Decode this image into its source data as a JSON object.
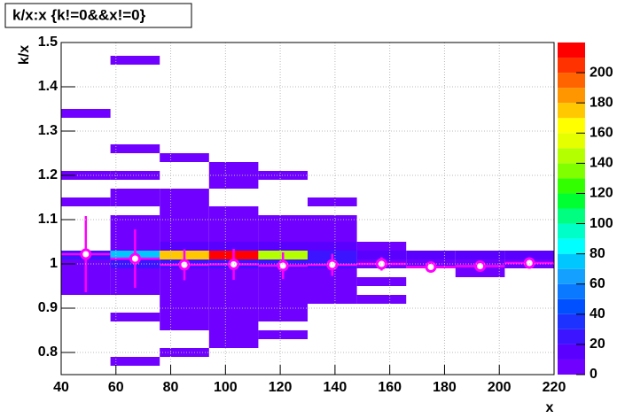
{
  "chart_data": {
    "type": "heatmap2d",
    "title": "k/x:x {k!=0&&x!=0}",
    "x_label": "x",
    "y_label": "k/x",
    "xlim": [
      40,
      220
    ],
    "ylim": [
      0.75,
      1.5
    ],
    "zlim": [
      0,
      220
    ],
    "xticks": [
      40,
      60,
      80,
      100,
      120,
      140,
      160,
      180,
      200,
      220
    ],
    "yticks": [
      0.8,
      0.9,
      1,
      1.1,
      1.2,
      1.3,
      1.4,
      1.5
    ],
    "zticks": [
      0,
      20,
      40,
      60,
      80,
      100,
      120,
      140,
      160,
      180,
      200
    ],
    "grid": true,
    "bin_size": [
      18,
      0.02
    ],
    "palette": [
      "#7000ff",
      "#5a00ff",
      "#3c14ff",
      "#1e32ff",
      "#0050ff",
      "#0a78ff",
      "#14a0ff",
      "#00c8ff",
      "#00ffff",
      "#00ffc8",
      "#00ff80",
      "#00ff32",
      "#32ff00",
      "#80ff00",
      "#b4ff00",
      "#e6ff00",
      "#ffff00",
      "#ffc800",
      "#ff9600",
      "#ff6400",
      "#ff3200",
      "#ff0000"
    ],
    "cells": {
      "x": [
        40,
        40,
        40,
        40,
        40,
        40,
        40,
        40,
        58,
        58,
        58,
        58,
        58,
        58,
        58,
        58,
        58,
        58,
        58,
        58,
        58,
        58,
        58,
        58,
        76,
        76,
        76,
        76,
        76,
        76,
        76,
        76,
        76,
        76,
        76,
        76,
        76,
        76,
        76,
        76,
        76,
        76,
        94,
        94,
        94,
        94,
        94,
        94,
        94,
        94,
        94,
        94,
        94,
        94,
        94,
        94,
        94,
        94,
        94,
        94,
        94,
        112,
        112,
        112,
        112,
        112,
        112,
        112,
        112,
        112,
        112,
        112,
        112,
        112,
        112,
        130,
        130,
        130,
        130,
        130,
        130,
        130,
        130,
        130,
        130,
        130,
        148,
        148,
        148,
        148,
        148,
        166,
        166,
        184,
        184,
        184,
        202,
        202
      ],
      "y": [
        1.33,
        1.19,
        1.13,
        1.01,
        0.99,
        0.97,
        0.95,
        0.93,
        1.45,
        1.25,
        1.19,
        1.15,
        1.13,
        1.09,
        1.07,
        1.05,
        1.03,
        1.01,
        0.99,
        0.97,
        0.95,
        0.93,
        0.87,
        0.77,
        1.23,
        1.15,
        1.13,
        1.11,
        1.09,
        1.07,
        1.05,
        1.03,
        1.01,
        0.99,
        0.97,
        0.95,
        0.93,
        0.91,
        0.89,
        0.87,
        0.85,
        0.79,
        1.21,
        1.19,
        1.17,
        1.11,
        1.09,
        1.07,
        1.05,
        1.03,
        1.01,
        0.99,
        0.97,
        0.95,
        0.93,
        0.91,
        0.89,
        0.87,
        0.85,
        0.83,
        0.81,
        1.19,
        1.09,
        1.07,
        1.05,
        1.03,
        1.01,
        0.99,
        0.97,
        0.95,
        0.93,
        0.91,
        0.89,
        0.87,
        0.83,
        1.13,
        1.09,
        1.07,
        1.05,
        1.03,
        1.01,
        0.99,
        0.97,
        0.95,
        0.93,
        0.91,
        1.03,
        1.01,
        0.99,
        0.95,
        0.91,
        1.01,
        0.99,
        1.01,
        0.99,
        0.97,
        1.01,
        0.99
      ],
      "z": [
        3,
        3,
        3,
        20,
        8,
        3,
        3,
        3,
        2,
        2,
        2,
        3,
        4,
        4,
        5,
        6,
        8,
        70,
        20,
        6,
        5,
        3,
        2,
        2,
        2,
        3,
        3,
        3,
        4,
        5,
        6,
        10,
        170,
        25,
        8,
        5,
        4,
        4,
        3,
        3,
        2,
        2,
        2,
        2,
        2,
        3,
        4,
        5,
        6,
        10,
        215,
        25,
        8,
        6,
        5,
        4,
        3,
        3,
        2,
        2,
        2,
        2,
        3,
        4,
        6,
        10,
        140,
        25,
        8,
        5,
        4,
        3,
        3,
        2,
        2,
        2,
        3,
        4,
        6,
        10,
        20,
        22,
        6,
        4,
        3,
        2,
        3,
        12,
        6,
        3,
        2,
        18,
        5,
        15,
        4,
        2,
        14,
        4
      ]
    },
    "profile": {
      "color": "#ff00ff",
      "x": [
        49,
        67,
        85,
        103,
        121,
        139,
        157,
        175,
        193,
        211
      ],
      "values": [
        1.022,
        1.012,
        0.998,
        0.999,
        0.996,
        0.998,
        1.0,
        0.993,
        0.995,
        1.002
      ],
      "errors": [
        0.086,
        0.066,
        0.035,
        0.035,
        0.03,
        0.025,
        0.015,
        0.005,
        0.004,
        0.004
      ]
    }
  }
}
